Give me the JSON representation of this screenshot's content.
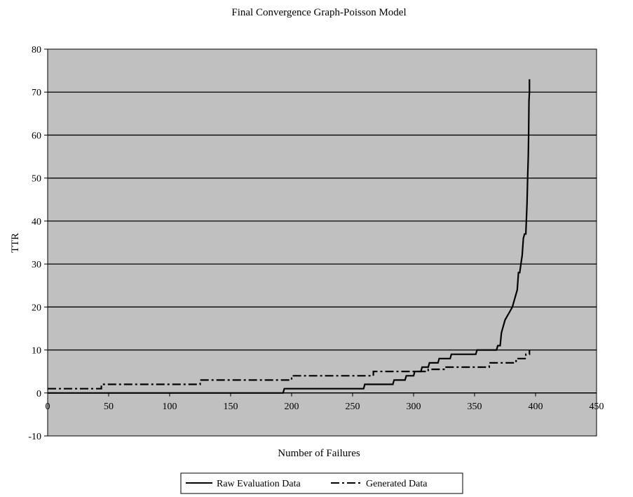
{
  "chart_data": {
    "type": "line",
    "title": "Final Convergence Graph-Poisson Model",
    "xlabel": "Number of Failures",
    "ylabel": "TTR",
    "xlim": [
      0,
      450
    ],
    "ylim": [
      -10,
      80
    ],
    "x_ticks": [
      0,
      50,
      100,
      150,
      200,
      250,
      300,
      350,
      400,
      450
    ],
    "y_ticks": [
      -10,
      0,
      10,
      20,
      30,
      40,
      50,
      60,
      70,
      80
    ],
    "grid": "horizontal",
    "plot_background": "#c0c0c0",
    "legend_position": "bottom",
    "series": [
      {
        "name": "Raw Evaluation Data",
        "style": "solid",
        "color": "#000000",
        "x": [
          0,
          193,
          194,
          259,
          260,
          283,
          284,
          293,
          294,
          300,
          301,
          306,
          307,
          312,
          313,
          320,
          321,
          330,
          331,
          351,
          352,
          368,
          369,
          371,
          372,
          373,
          375,
          377,
          379,
          381,
          383,
          385,
          386,
          387,
          388,
          389,
          390,
          391,
          392,
          393,
          393.5,
          394,
          394.3,
          394.6,
          395,
          395
        ],
        "y": [
          0,
          0,
          1,
          1,
          2,
          2,
          3,
          3,
          4,
          4,
          5,
          5,
          6,
          6,
          7,
          7,
          8,
          8,
          9,
          9,
          10,
          10,
          11,
          11,
          14,
          15,
          17,
          18,
          19,
          20,
          22,
          24,
          28,
          28,
          30,
          32,
          36,
          37,
          37,
          44,
          50,
          55,
          60,
          68,
          70,
          73
        ]
      },
      {
        "name": "Generated Data",
        "style": "dash-dot",
        "color": "#000000",
        "x": [
          0,
          44,
          44,
          125,
          125,
          200,
          200,
          267,
          267,
          312,
          312,
          326,
          326,
          362,
          362,
          384,
          384,
          392,
          392,
          395,
          395
        ],
        "y": [
          1,
          1,
          2,
          2,
          3,
          3,
          4,
          4,
          5,
          5,
          5.5,
          5.5,
          6,
          6,
          7,
          7,
          8,
          8,
          9,
          9,
          10
        ]
      }
    ]
  }
}
